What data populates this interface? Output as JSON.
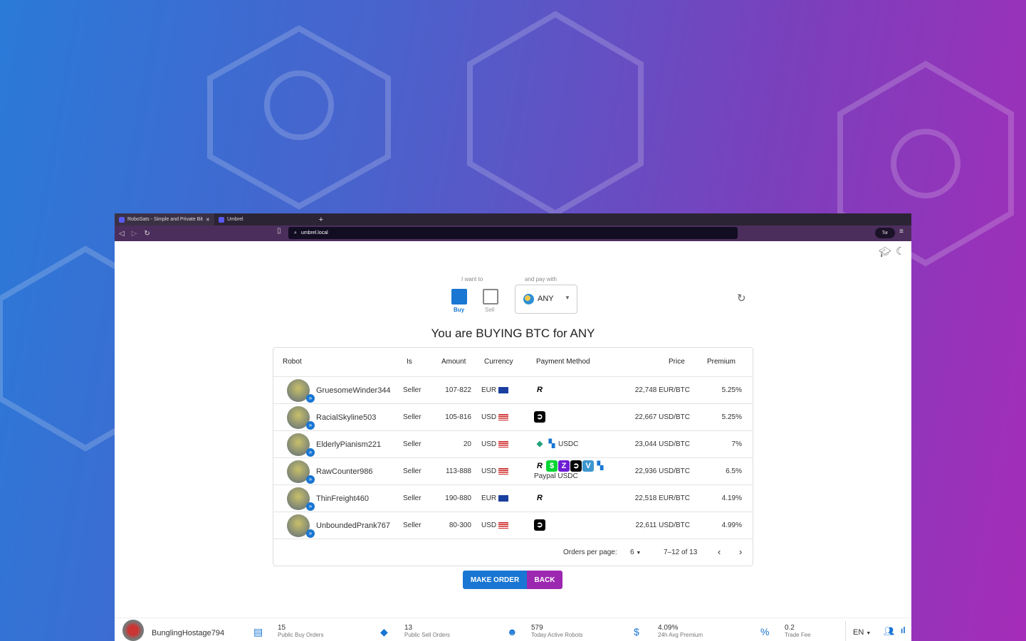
{
  "browser": {
    "tabs": [
      {
        "title": "RoboSats - Simple and Private Bit",
        "active": true
      },
      {
        "title": "Umbrel",
        "active": false
      }
    ],
    "new_tab": "+",
    "url": "umbrel.local",
    "tor_label": "Tor"
  },
  "selector": {
    "want_label": "I want to",
    "buy": "Buy",
    "sell": "Sell",
    "selected": "Buy",
    "pay_label": "and pay with",
    "currency": "ANY"
  },
  "title": "You are BUYING BTC for ANY",
  "table": {
    "headers": [
      "Robot",
      "Is",
      "Amount",
      "Currency",
      "Payment Method",
      "Price",
      "Premium"
    ],
    "rows": [
      {
        "robot": "GruesomeWinder344",
        "is": "Seller",
        "amount": "107-822",
        "currency": "EUR",
        "payment": [
          "revolut-icon"
        ],
        "payment_text": "",
        "price": "22,748 EUR/BTC",
        "premium": "5.25%"
      },
      {
        "robot": "RacialSkyline503",
        "is": "Seller",
        "amount": "105-816",
        "currency": "USD",
        "payment": [
          "strike-icon"
        ],
        "payment_text": "",
        "price": "22,667 USD/BTC",
        "premium": "5.25%"
      },
      {
        "robot": "ElderlyPianism221",
        "is": "Seller",
        "amount": "20",
        "currency": "USD",
        "payment": [
          "tether-icon",
          "other-icon"
        ],
        "payment_text": "USDC",
        "price": "23,044 USD/BTC",
        "premium": "7%"
      },
      {
        "robot": "RawCounter986",
        "is": "Seller",
        "amount": "113-888",
        "currency": "USD",
        "payment": [
          "revolut-icon",
          "cashapp-icon",
          "zelle-icon",
          "strike-icon",
          "venmo-icon",
          "other-icon"
        ],
        "payment_text": "Paypal USDC",
        "price": "22,936 USD/BTC",
        "premium": "6.5%"
      },
      {
        "robot": "ThinFreight460",
        "is": "Seller",
        "amount": "190-880",
        "currency": "EUR",
        "payment": [
          "revolut-icon"
        ],
        "payment_text": "",
        "price": "22,518 EUR/BTC",
        "premium": "4.19%"
      },
      {
        "robot": "UnboundedPrank767",
        "is": "Seller",
        "amount": "80-300",
        "currency": "USD",
        "payment": [
          "strike-icon"
        ],
        "payment_text": "",
        "price": "22,611 USD/BTC",
        "premium": "4.99%"
      }
    ],
    "pagination": {
      "per_page_label": "Orders per page:",
      "per_page": "6",
      "range": "7–12 of 13"
    }
  },
  "buttons": {
    "make_order": "MAKE ORDER",
    "back": "BACK"
  },
  "bottom": {
    "user": "BunglingHostage794",
    "stats": [
      {
        "value": "15",
        "label": "Public Buy Orders",
        "icon": "inbox-icon"
      },
      {
        "value": "13",
        "label": "Public Sell Orders",
        "icon": "tag-icon"
      },
      {
        "value": "579",
        "label": "Today Active Robots",
        "icon": "robot-icon"
      },
      {
        "value": "4.09%",
        "label": "24h Avg Premium",
        "icon": "price-change-icon"
      },
      {
        "value": "0.2",
        "label": "Trade Fee",
        "icon": "percent-icon"
      }
    ],
    "lang": "EN"
  },
  "colors": {
    "primary": "#1976d2",
    "secondary": "#9c27b0"
  }
}
